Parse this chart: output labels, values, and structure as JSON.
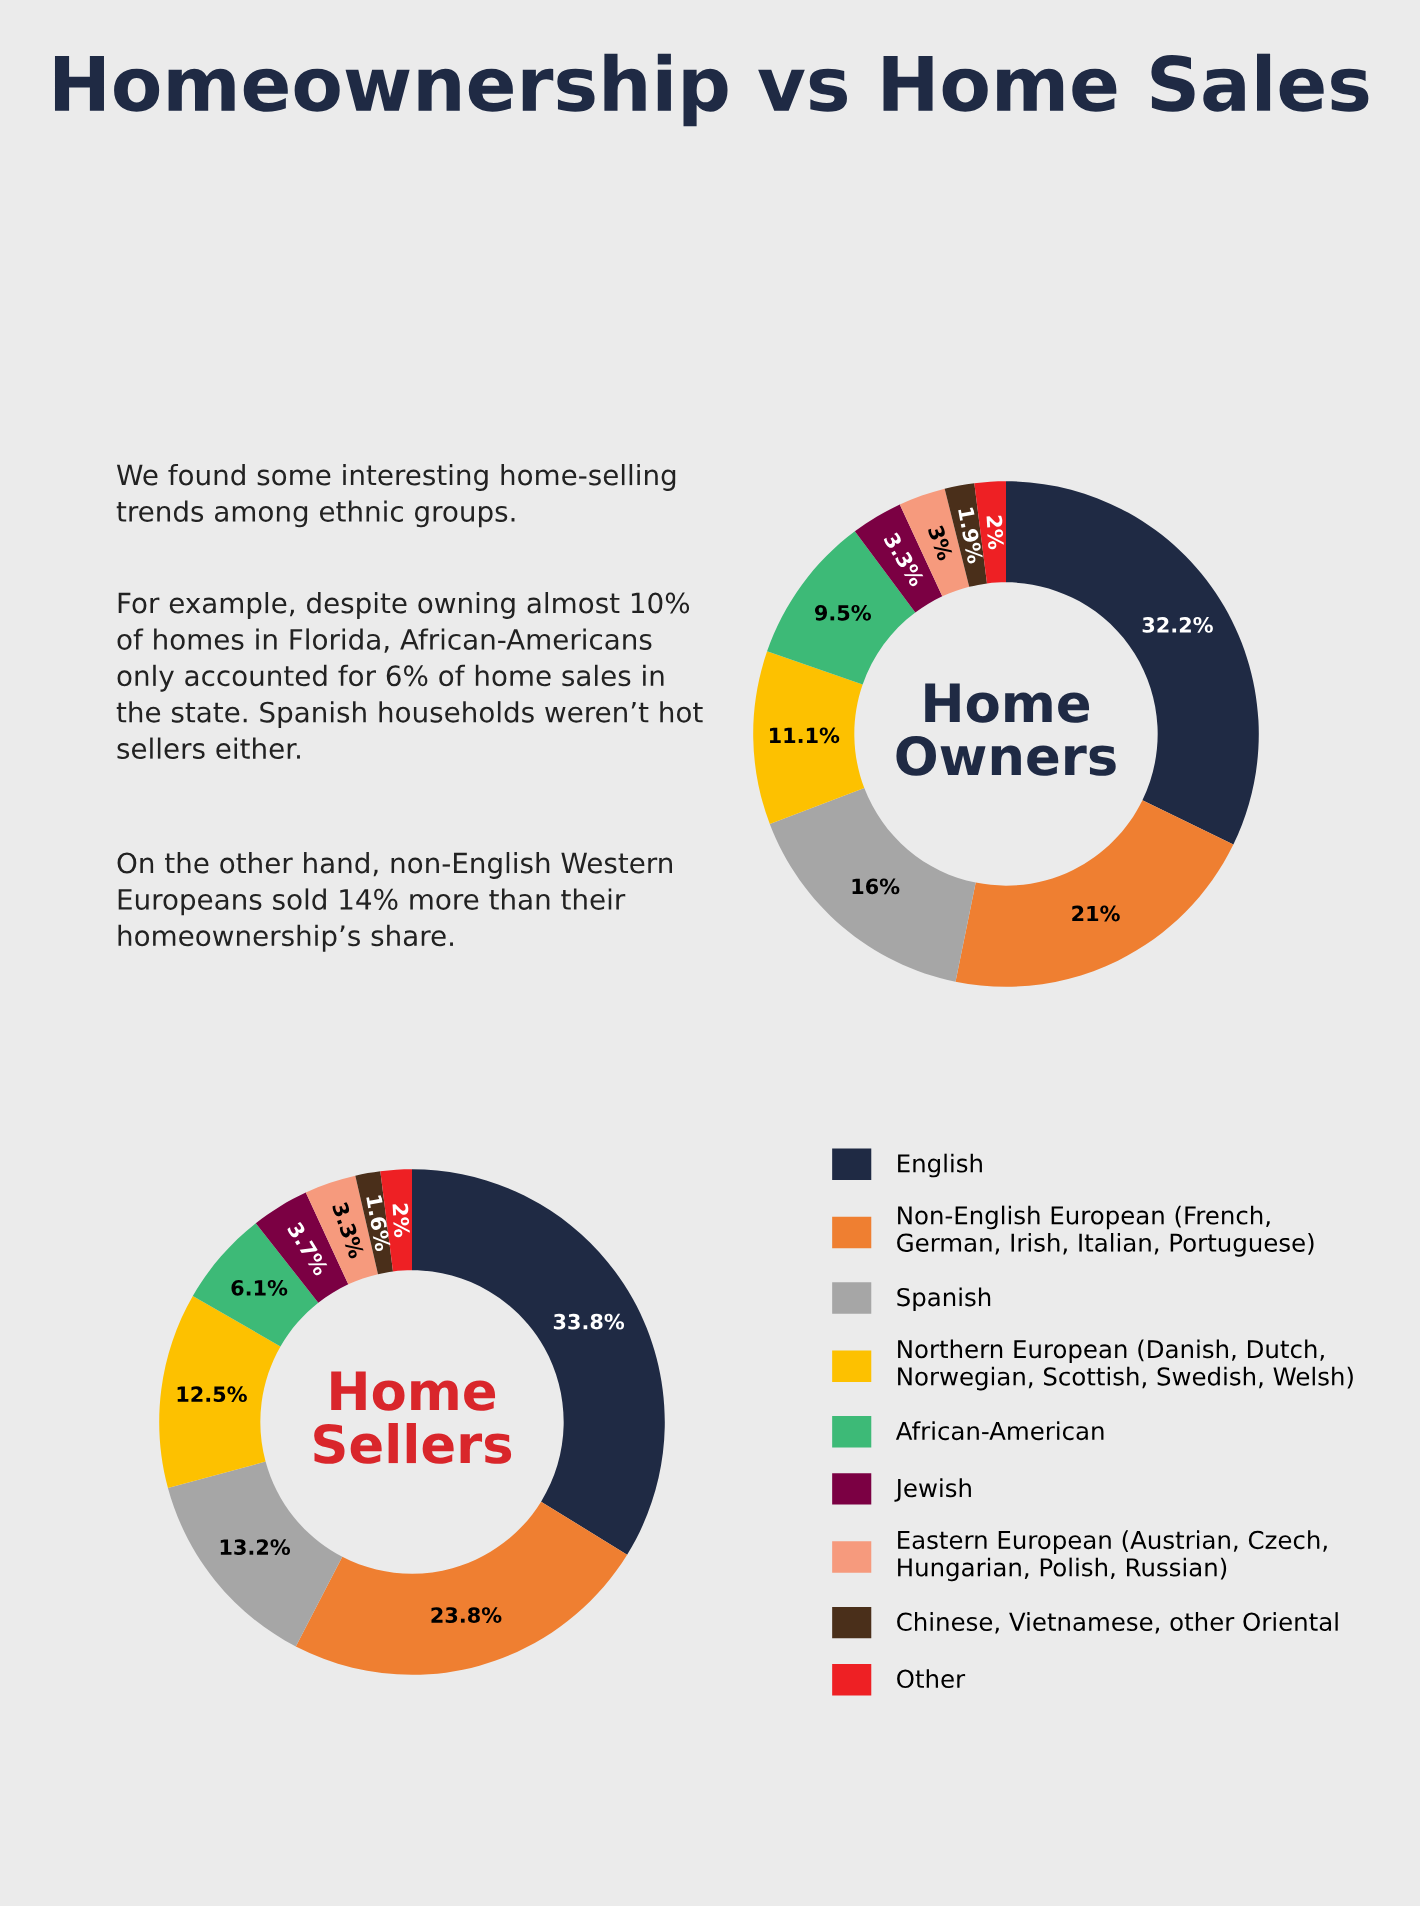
{
  "chart_data": [
    {
      "type": "other",
      "title": "Homeownership vs Home Sales",
      "annotations": [
        "We found some interesting home-selling trends among ethnic groups.",
        "For example, despite owning almost 10% of homes in Florida, African-Americans only accounted for 6% of home sales in the state. Spanish households weren’t hot sellers either.",
        "On the other hand, non-English Western Europeans sold 14% more than their homeownership’s share."
      ]
    },
    {
      "type": "donut",
      "title": "Home\nOwners",
      "categories": [
        null,
        null,
        null,
        null,
        null,
        null,
        null,
        null,
        null
      ],
      "values": [
        32.2,
        21,
        16,
        11.1,
        9.5,
        3.3,
        3,
        1.9,
        2
      ],
      "value_labels": [
        "32.2%",
        "21%",
        "16%",
        "11.1%",
        "9.5%",
        "3.3%",
        "3%",
        "1.9%",
        "2%"
      ],
      "colors": [
        "#1f2a44",
        "#ef7f31",
        "#a6a6a6",
        "#fdc100",
        "#3dba77",
        "#7b0043",
        "#f69a7d",
        "#4a2f1a",
        "#ee2024"
      ]
    },
    {
      "type": "donut",
      "title": "Home\nSellers",
      "legend": "right",
      "categories": [
        "English",
        "Non-English European (French,\nGerman, Irish, Italian, Portuguese)",
        "Spanish",
        "Northern European (Danish, Dutch,\nNorwegian, Scottish, Swedish, Welsh)",
        "African-American",
        "Jewish",
        "Eastern European (Austrian, Czech,\nHungarian, Polish, Russian)",
        "Chinese, Vietnamese, other Oriental",
        "Other"
      ],
      "values": [
        33.8,
        23.8,
        13.2,
        12.5,
        6.1,
        3.7,
        3.3,
        1.6,
        2
      ],
      "value_labels": [
        "33.8%",
        "23.8%",
        "13.2%",
        "12.5%",
        "6.1%",
        "3.7%",
        "3.3%",
        "1.6%",
        "2%"
      ],
      "colors": [
        "#1f2a44",
        "#ef7f31",
        "#a6a6a6",
        "#fdc100",
        "#3dba77",
        "#7b0043",
        "#f69a7d",
        "#4a2f1a",
        "#ee2024"
      ]
    }
  ]
}
